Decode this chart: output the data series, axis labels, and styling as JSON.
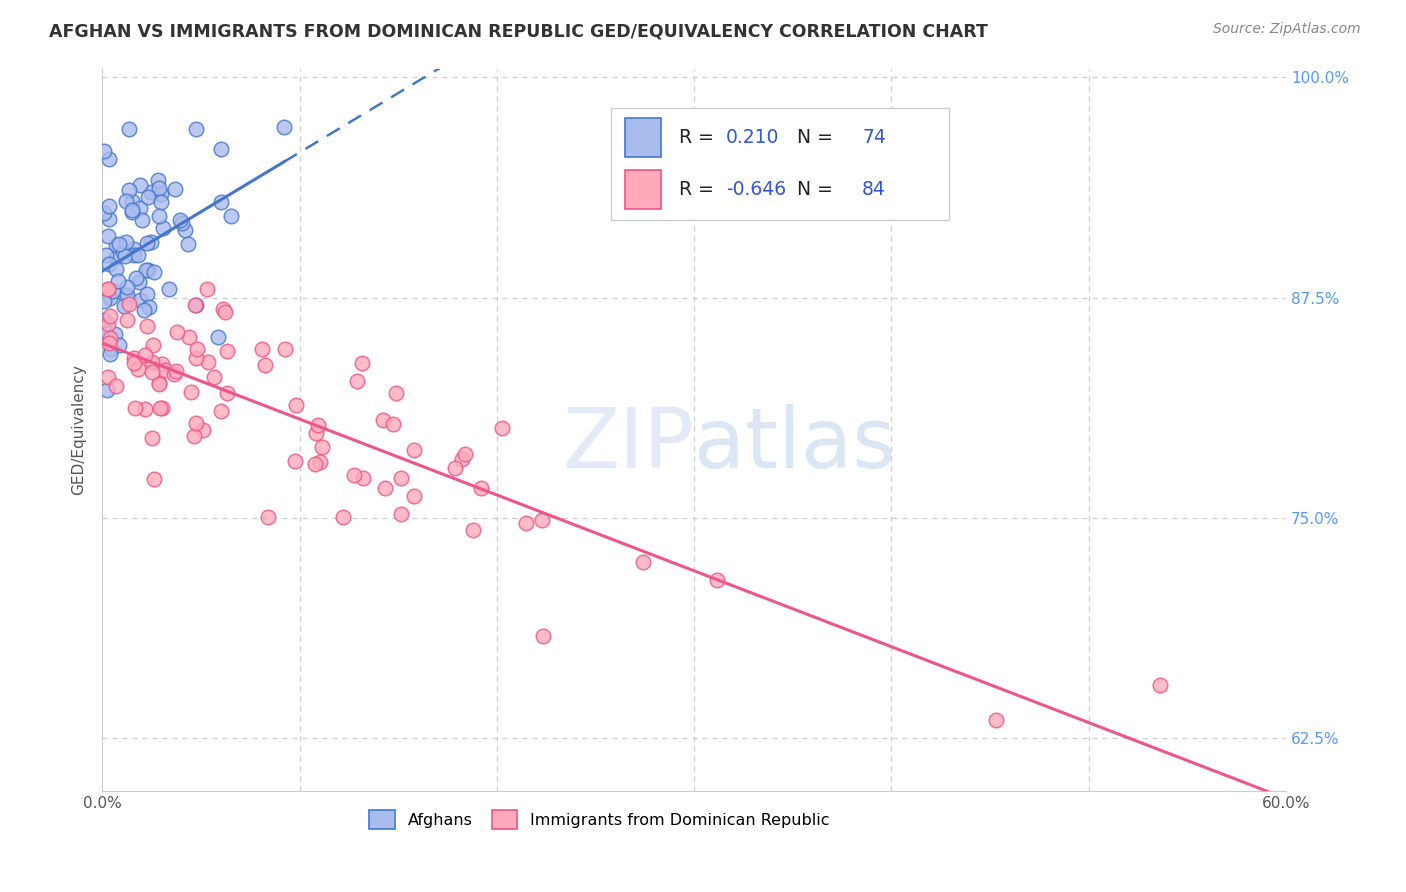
{
  "title": "AFGHAN VS IMMIGRANTS FROM DOMINICAN REPUBLIC GED/EQUIVALENCY CORRELATION CHART",
  "source": "Source: ZipAtlas.com",
  "ylabel": "GED/Equivalency",
  "xlim": [
    0.0,
    0.6
  ],
  "ylim": [
    0.595,
    1.005
  ],
  "afghan_color": "#4477cc",
  "afghan_fill": "#aabbee",
  "dr_color": "#ee5588",
  "dr_fill": "#ffaabb",
  "legend_R1": "0.210",
  "legend_N1": "74",
  "legend_R2": "-0.646",
  "legend_N2": "84",
  "watermark": "ZIPatlas",
  "title_color": "#333333",
  "source_color": "#888888",
  "right_tick_color": "#5599ff",
  "grid_color": "#cccccc"
}
